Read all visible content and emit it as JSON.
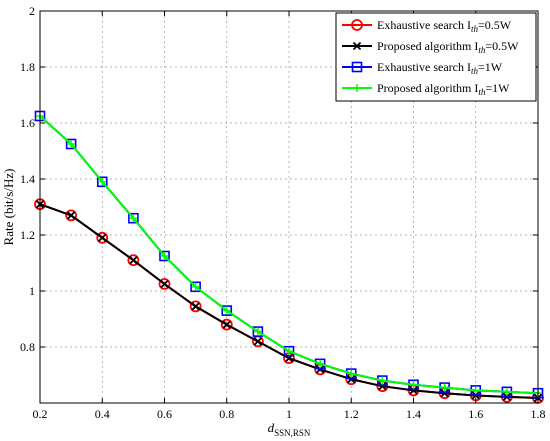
{
  "chart_data": {
    "type": "line",
    "xlabel": "d",
    "xlabel_sub": "SSN,RSN",
    "ylabel": "Rate (bit/s/Hz)",
    "xlim": [
      0.2,
      1.8
    ],
    "ylim": [
      0.6,
      2.0
    ],
    "xticks": [
      "0.2",
      "0.4",
      "0.6",
      "0.8",
      "1",
      "1.2",
      "1.4",
      "1.6",
      "1.8"
    ],
    "yticks": [
      "0.8",
      "1",
      "1.2",
      "1.4",
      "1.6",
      "1.8",
      "2"
    ],
    "grid": true,
    "legend_position": "top-right",
    "x": [
      0.2,
      0.3,
      0.4,
      0.5,
      0.6,
      0.7,
      0.8,
      0.9,
      1.0,
      1.1,
      1.2,
      1.3,
      1.4,
      1.5,
      1.6,
      1.7,
      1.8
    ],
    "series": [
      {
        "name": "Exhaustive search I",
        "name_sub": "th",
        "name_suffix": "=0.5W",
        "color": "#ff0000",
        "marker": "circle",
        "values": [
          1.31,
          1.27,
          1.19,
          1.11,
          1.025,
          0.945,
          0.88,
          0.82,
          0.76,
          0.72,
          0.685,
          0.66,
          0.645,
          0.635,
          0.627,
          0.622,
          0.618
        ]
      },
      {
        "name": "Proposed algorithm I",
        "name_sub": "th",
        "name_suffix": "=0.5W",
        "color": "#000000",
        "marker": "x",
        "values": [
          1.31,
          1.27,
          1.19,
          1.11,
          1.025,
          0.945,
          0.88,
          0.82,
          0.76,
          0.72,
          0.685,
          0.66,
          0.645,
          0.635,
          0.627,
          0.622,
          0.618
        ]
      },
      {
        "name": "Exhaustive search I",
        "name_sub": "th",
        "name_suffix": "=1W",
        "color": "#0000ff",
        "marker": "square",
        "values": [
          1.625,
          1.525,
          1.39,
          1.26,
          1.125,
          1.015,
          0.93,
          0.855,
          0.785,
          0.74,
          0.705,
          0.68,
          0.665,
          0.655,
          0.645,
          0.64,
          0.635
        ]
      },
      {
        "name": "Proposed algorithm I",
        "name_sub": "th",
        "name_suffix": "=1W",
        "color": "#00ff00",
        "marker": "plus",
        "values": [
          1.625,
          1.525,
          1.39,
          1.26,
          1.125,
          1.015,
          0.93,
          0.855,
          0.785,
          0.74,
          0.705,
          0.68,
          0.665,
          0.655,
          0.645,
          0.64,
          0.635
        ]
      }
    ]
  }
}
